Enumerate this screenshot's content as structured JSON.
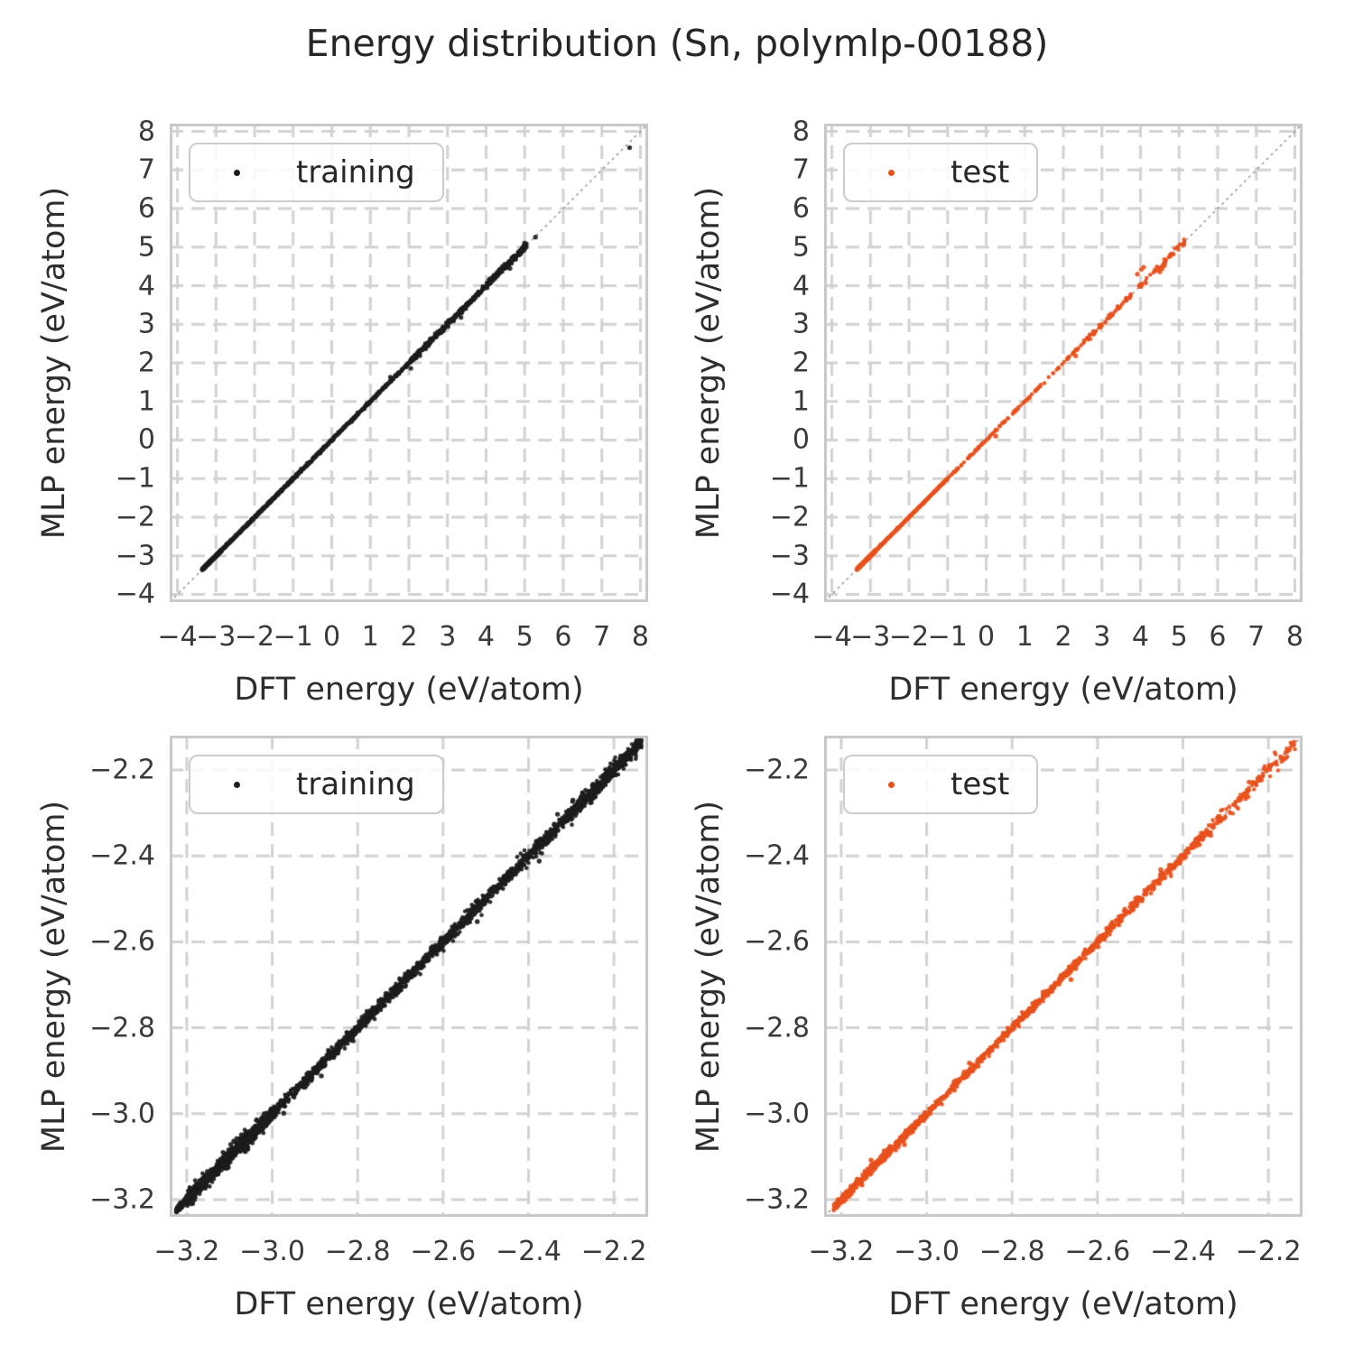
{
  "title": "Energy distribution (Sn, polymlp-00188)",
  "colors": {
    "training": "#1c1c1c",
    "test": "#e8511c",
    "grid": "#d2d2d2",
    "spine": "#c8c8c8",
    "identity_line": "#7f7f7f",
    "text": "#2e2e2e",
    "tick_text": "#3a3a3a",
    "legend_border": "#cccccc",
    "background": "#ffffff"
  },
  "chart_data": [
    {
      "id": "training-full",
      "type": "scatter",
      "legend": {
        "label": "training",
        "position": "upper-left"
      },
      "color": "#1c1c1c",
      "xlabel": "DFT energy (eV/atom)",
      "ylabel": "MLP energy (eV/atom)",
      "xlim": [
        -4.2,
        8.2
      ],
      "ylim": [
        -4.2,
        8.2
      ],
      "xticks": [
        -4,
        -3,
        -2,
        -1,
        0,
        1,
        2,
        3,
        4,
        5,
        6,
        7,
        8
      ],
      "xtick_labels": [
        "−4",
        "−3",
        "−2",
        "−1",
        "0",
        "1",
        "2",
        "3",
        "4",
        "5",
        "6",
        "7",
        "8"
      ],
      "yticks": [
        -4,
        -3,
        -2,
        -1,
        0,
        1,
        2,
        3,
        4,
        5,
        6,
        7,
        8
      ],
      "ytick_labels": [
        "−4",
        "−3",
        "−2",
        "−1",
        "0",
        "1",
        "2",
        "3",
        "4",
        "5",
        "6",
        "7",
        "8"
      ],
      "grid": "dashed",
      "identity_line": true,
      "marker_px": 2.2,
      "point_clusters": [
        {
          "x_range": [
            -3.36,
            -2.85
          ],
          "n": 750,
          "y_sigma": 0.012
        },
        {
          "x_range": [
            -3.3,
            -1.0
          ],
          "n": 900,
          "y_sigma": 0.012
        },
        {
          "x_range": [
            -1.0,
            2.0
          ],
          "n": 420,
          "y_sigma": 0.018
        },
        {
          "x_range": [
            2.0,
            4.0
          ],
          "n": 300,
          "y_sigma": 0.035
        },
        {
          "x_range": [
            4.0,
            5.05
          ],
          "n": 260,
          "y_sigma": 0.04
        }
      ],
      "outlier_points": [
        [
          7.72,
          7.58
        ],
        [
          5.28,
          5.26
        ],
        [
          2.05,
          1.86
        ],
        [
          3.35,
          3.18
        ],
        [
          4.62,
          4.45
        ],
        [
          1.52,
          1.63
        ]
      ]
    },
    {
      "id": "test-full",
      "type": "scatter",
      "legend": {
        "label": "test",
        "position": "upper-left"
      },
      "color": "#e8511c",
      "xlabel": "DFT energy (eV/atom)",
      "ylabel": "MLP energy (eV/atom)",
      "xlim": [
        -4.2,
        8.2
      ],
      "ylim": [
        -4.2,
        8.2
      ],
      "xticks": [
        -4,
        -3,
        -2,
        -1,
        0,
        1,
        2,
        3,
        4,
        5,
        6,
        7,
        8
      ],
      "xtick_labels": [
        "−4",
        "−3",
        "−2",
        "−1",
        "0",
        "1",
        "2",
        "3",
        "4",
        "5",
        "6",
        "7",
        "8"
      ],
      "yticks": [
        -4,
        -3,
        -2,
        -1,
        0,
        1,
        2,
        3,
        4,
        5,
        6,
        7,
        8
      ],
      "ytick_labels": [
        "−4",
        "−3",
        "−2",
        "−1",
        "0",
        "1",
        "2",
        "3",
        "4",
        "5",
        "6",
        "7",
        "8"
      ],
      "grid": "dashed",
      "identity_line": true,
      "marker_px": 2.2,
      "point_clusters": [
        {
          "x_range": [
            -3.36,
            -2.85
          ],
          "n": 520,
          "y_sigma": 0.01
        },
        {
          "x_range": [
            -3.3,
            -1.0
          ],
          "n": 380,
          "y_sigma": 0.009
        },
        {
          "x_range": [
            -1.0,
            2.5
          ],
          "n": 130,
          "y_sigma": 0.014
        },
        {
          "x_range": [
            2.5,
            4.0
          ],
          "n": 70,
          "y_sigma": 0.03
        },
        {
          "x_range": [
            4.0,
            5.15
          ],
          "n": 45,
          "y_sigma": 0.05
        }
      ],
      "outlier_points": [
        [
          3.92,
          4.3
        ],
        [
          4.02,
          4.42
        ],
        [
          4.08,
          4.48
        ],
        [
          4.5,
          4.36
        ],
        [
          4.56,
          4.44
        ],
        [
          4.62,
          4.52
        ],
        [
          2.32,
          2.18
        ],
        [
          0.25,
          0.1
        ]
      ]
    },
    {
      "id": "training-zoom",
      "type": "scatter",
      "legend": {
        "label": "training",
        "position": "upper-left"
      },
      "color": "#1c1c1c",
      "xlabel": "DFT energy (eV/atom)",
      "ylabel": "MLP energy (eV/atom)",
      "xlim": [
        -3.24,
        -2.12
      ],
      "ylim": [
        -3.24,
        -2.12
      ],
      "xticks": [
        -3.2,
        -3.0,
        -2.8,
        -2.6,
        -2.4,
        -2.2
      ],
      "xtick_labels": [
        "−3.2",
        "−3.0",
        "−2.8",
        "−2.6",
        "−2.4",
        "−2.2"
      ],
      "yticks": [
        -3.2,
        -3.0,
        -2.8,
        -2.6,
        -2.4,
        -2.2
      ],
      "ytick_labels": [
        "−3.2",
        "−3.0",
        "−2.8",
        "−2.6",
        "−2.4",
        "−2.2"
      ],
      "grid": "dashed",
      "identity_line": true,
      "marker_px": 2.3,
      "point_clusters": [
        {
          "x_range": [
            -3.225,
            -3.17
          ],
          "n": 300,
          "y_sigma": 0.004
        },
        {
          "x_range": [
            -3.2,
            -3.0
          ],
          "n": 750,
          "y_sigma": 0.009
        },
        {
          "x_range": [
            -3.0,
            -2.6
          ],
          "n": 800,
          "y_sigma": 0.007
        },
        {
          "x_range": [
            -2.6,
            -2.3
          ],
          "n": 550,
          "y_sigma": 0.008
        },
        {
          "x_range": [
            -2.3,
            -2.135
          ],
          "n": 500,
          "y_sigma": 0.009
        }
      ],
      "outlier_points": [
        [
          -3.09,
          -3.064
        ],
        [
          -3.083,
          -3.058
        ],
        [
          -3.097,
          -3.072
        ],
        [
          -3.072,
          -3.049
        ],
        [
          -3.063,
          -3.088
        ],
        [
          -3.103,
          -3.125
        ],
        [
          -3.115,
          -3.09
        ],
        [
          -2.973,
          -2.999
        ],
        [
          -2.885,
          -2.912
        ],
        [
          -2.52,
          -2.553
        ],
        [
          -2.375,
          -2.412
        ],
        [
          -2.332,
          -2.303
        ],
        [
          -2.296,
          -2.27
        ]
      ]
    },
    {
      "id": "test-zoom",
      "type": "scatter",
      "legend": {
        "label": "test",
        "position": "upper-left"
      },
      "color": "#e8511c",
      "xlabel": "DFT energy (eV/atom)",
      "ylabel": "MLP energy (eV/atom)",
      "xlim": [
        -3.24,
        -2.12
      ],
      "ylim": [
        -3.24,
        -2.12
      ],
      "xticks": [
        -3.2,
        -3.0,
        -2.8,
        -2.6,
        -2.4,
        -2.2
      ],
      "xtick_labels": [
        "−3.2",
        "−3.0",
        "−2.8",
        "−2.6",
        "−2.4",
        "−2.2"
      ],
      "yticks": [
        -3.2,
        -3.0,
        -2.8,
        -2.6,
        -2.4,
        -2.2
      ],
      "ytick_labels": [
        "−3.2",
        "−3.0",
        "−2.8",
        "−2.6",
        "−2.4",
        "−2.2"
      ],
      "grid": "dashed",
      "identity_line": true,
      "marker_px": 2.3,
      "point_clusters": [
        {
          "x_range": [
            -3.22,
            -3.0
          ],
          "n": 480,
          "y_sigma": 0.005
        },
        {
          "x_range": [
            -3.0,
            -2.6
          ],
          "n": 470,
          "y_sigma": 0.005
        },
        {
          "x_range": [
            -2.6,
            -2.35
          ],
          "n": 260,
          "y_sigma": 0.006
        },
        {
          "x_range": [
            -2.35,
            -2.135
          ],
          "n": 130,
          "y_sigma": 0.008
        }
      ],
      "outlier_points": [
        [
          -3.13,
          -3.108
        ],
        [
          -3.052,
          -3.072
        ],
        [
          -2.9,
          -2.882
        ],
        [
          -2.662,
          -2.688
        ],
        [
          -2.452,
          -2.432
        ],
        [
          -2.335,
          -2.352
        ],
        [
          -2.245,
          -2.228
        ]
      ]
    }
  ]
}
